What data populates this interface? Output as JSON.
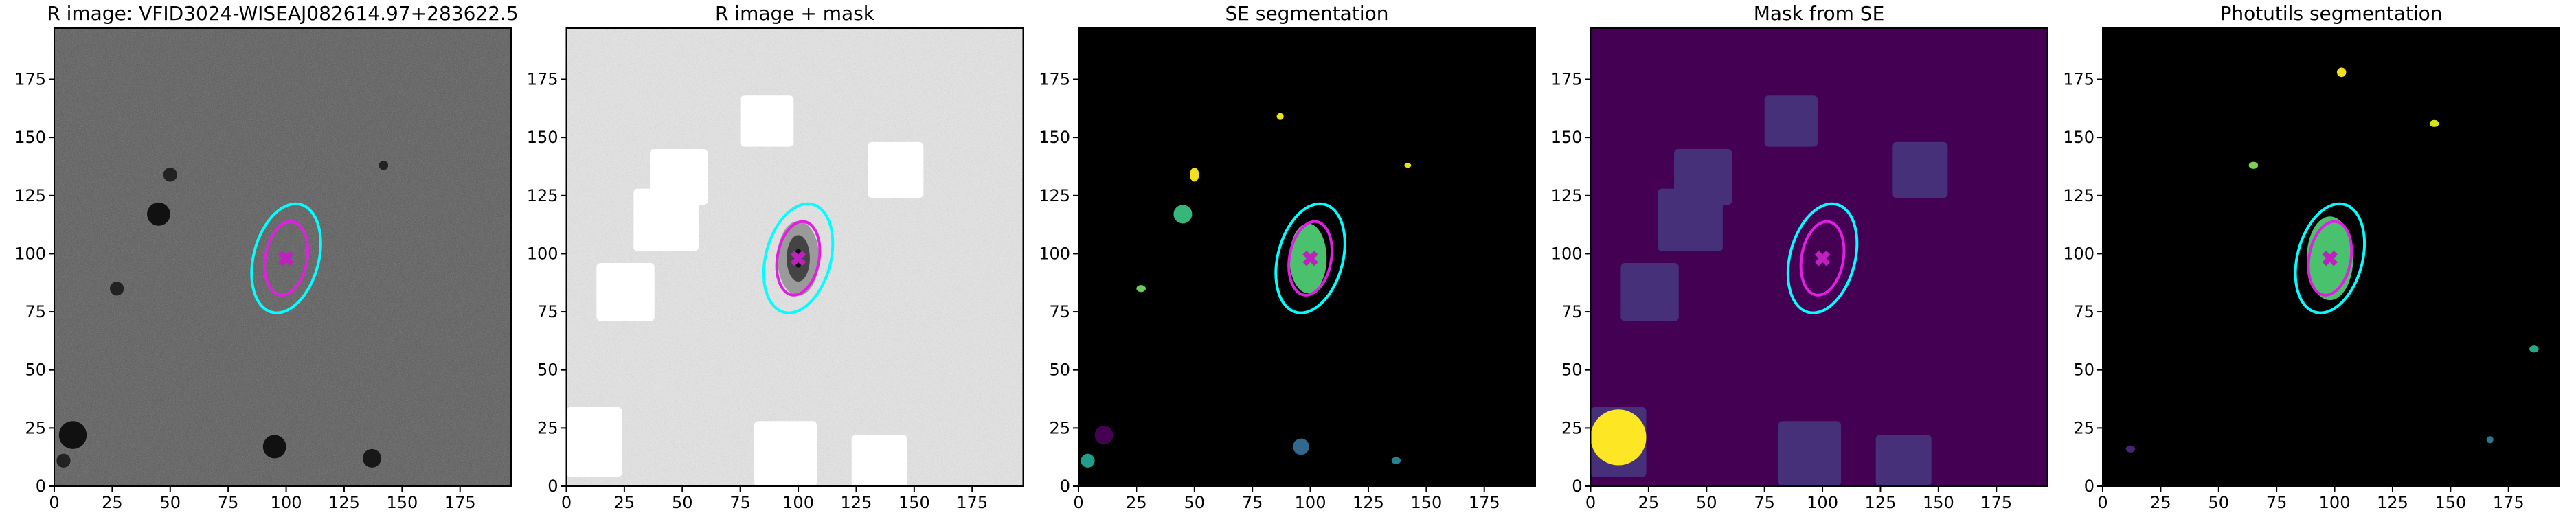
{
  "chart_data": [
    {
      "type": "image",
      "title": "R image: VFID3024-WISEAJ082614.97+283622.5",
      "xlim": [
        0,
        197
      ],
      "ylim": [
        0,
        197
      ],
      "xticks": [
        0,
        25,
        50,
        75,
        100,
        125,
        150,
        175
      ],
      "yticks": [
        0,
        25,
        50,
        75,
        100,
        125,
        150,
        175
      ],
      "background": "#5a5a5a",
      "noise": true,
      "regions": [],
      "region_color": "#ffffff",
      "sources": [
        {
          "x": 45,
          "y": 117,
          "rx": 5,
          "ry": 5,
          "color": "#111111"
        },
        {
          "x": 8,
          "y": 22,
          "rx": 6,
          "ry": 6,
          "color": "#111111"
        },
        {
          "x": 95,
          "y": 17,
          "rx": 5,
          "ry": 5,
          "color": "#111111"
        },
        {
          "x": 137,
          "y": 12,
          "rx": 4,
          "ry": 4,
          "color": "#181818"
        },
        {
          "x": 27,
          "y": 85,
          "rx": 3,
          "ry": 3,
          "color": "#222222"
        },
        {
          "x": 50,
          "y": 134,
          "rx": 3,
          "ry": 3,
          "color": "#222222"
        },
        {
          "x": 142,
          "y": 138,
          "rx": 2,
          "ry": 2,
          "color": "#222222"
        },
        {
          "x": 4,
          "y": 11,
          "rx": 3,
          "ry": 3,
          "color": "#222222"
        }
      ],
      "ellipses": [
        {
          "x": 100,
          "y": 98,
          "rx": 14,
          "ry": 24,
          "angle": 15,
          "color": "#00ffff"
        },
        {
          "x": 100,
          "y": 98,
          "rx": 9,
          "ry": 16,
          "angle": 10,
          "color": "#e020e0"
        }
      ],
      "center": [
        100,
        98
      ],
      "center_color": "#c020c0"
    },
    {
      "type": "image",
      "title": "R image + mask",
      "xlim": [
        0,
        197
      ],
      "ylim": [
        0,
        197
      ],
      "xticks": [
        0,
        25,
        50,
        75,
        100,
        125,
        150,
        175
      ],
      "yticks": [
        0,
        25,
        50,
        75,
        100,
        125,
        150,
        175
      ],
      "background": "#e6e6e6",
      "noise": true,
      "regions": [
        {
          "x0": 75,
          "x1": 98,
          "y0": 146,
          "y1": 168
        },
        {
          "x0": 36,
          "x1": 61,
          "y0": 121,
          "y1": 145
        },
        {
          "x0": 29,
          "x1": 57,
          "y0": 101,
          "y1": 128
        },
        {
          "x0": 130,
          "x1": 154,
          "y0": 124,
          "y1": 148
        },
        {
          "x0": 13,
          "x1": 38,
          "y0": 71,
          "y1": 96
        },
        {
          "x0": 0,
          "x1": 24,
          "y0": 4,
          "y1": 34
        },
        {
          "x0": 81,
          "x1": 108,
          "y0": 0,
          "y1": 28
        },
        {
          "x0": 123,
          "x1": 147,
          "y0": 0,
          "y1": 22
        }
      ],
      "region_color": "#ffffff",
      "sources": [
        {
          "x": 100,
          "y": 98,
          "rx": 9,
          "ry": 16,
          "color": "#9a9a9a"
        },
        {
          "x": 100,
          "y": 98,
          "rx": 5,
          "ry": 10,
          "color": "#444444"
        },
        {
          "x": 100,
          "y": 98,
          "rx": 2,
          "ry": 4,
          "color": "#111111"
        }
      ],
      "ellipses": [
        {
          "x": 100,
          "y": 98,
          "rx": 14,
          "ry": 24,
          "angle": 15,
          "color": "#00ffff"
        },
        {
          "x": 100,
          "y": 98,
          "rx": 9,
          "ry": 16,
          "angle": 10,
          "color": "#e020e0"
        }
      ],
      "center": [
        100,
        98
      ],
      "center_color": "#c020c0"
    },
    {
      "type": "image",
      "title": "SE segmentation",
      "xlim": [
        0,
        197
      ],
      "ylim": [
        0,
        197
      ],
      "xticks": [
        0,
        25,
        50,
        75,
        100,
        125,
        150,
        175
      ],
      "yticks": [
        0,
        25,
        50,
        75,
        100,
        125,
        150,
        175
      ],
      "background": "#000000",
      "noise": false,
      "regions": [],
      "region_color": "#ffffff",
      "sources": [
        {
          "x": 87,
          "y": 159,
          "rx": 1.5,
          "ry": 1.5,
          "color": "#e8e419"
        },
        {
          "x": 50,
          "y": 134,
          "rx": 2,
          "ry": 3,
          "color": "#f0e020"
        },
        {
          "x": 142,
          "y": 138,
          "rx": 1.5,
          "ry": 1,
          "color": "#e8e419"
        },
        {
          "x": 45,
          "y": 117,
          "rx": 4,
          "ry": 4,
          "color": "#35b779"
        },
        {
          "x": 27,
          "y": 85,
          "rx": 2,
          "ry": 1.5,
          "color": "#6ccd5a"
        },
        {
          "x": 11,
          "y": 22,
          "rx": 4,
          "ry": 4,
          "color": "#440154"
        },
        {
          "x": 4,
          "y": 11,
          "rx": 3,
          "ry": 3,
          "color": "#1f9e89"
        },
        {
          "x": 96,
          "y": 17,
          "rx": 3.5,
          "ry": 3.5,
          "color": "#31688e"
        },
        {
          "x": 137,
          "y": 11,
          "rx": 2,
          "ry": 1.5,
          "color": "#26828e"
        },
        {
          "x": 99,
          "y": 98,
          "rx": 8,
          "ry": 15,
          "color": "#4ac16d"
        }
      ],
      "ellipses": [
        {
          "x": 100,
          "y": 98,
          "rx": 14,
          "ry": 24,
          "angle": 15,
          "color": "#00ffff"
        },
        {
          "x": 100,
          "y": 98,
          "rx": 9,
          "ry": 16,
          "angle": 10,
          "color": "#e020e0"
        }
      ],
      "center": [
        100,
        98
      ],
      "center_color": "#c020c0"
    },
    {
      "type": "image",
      "title": "Mask from SE",
      "xlim": [
        0,
        197
      ],
      "ylim": [
        0,
        197
      ],
      "xticks": [
        0,
        25,
        50,
        75,
        100,
        125,
        150,
        175
      ],
      "yticks": [
        0,
        25,
        50,
        75,
        100,
        125,
        150,
        175
      ],
      "background": "#440154",
      "noise": false,
      "regions": [
        {
          "x0": 75,
          "x1": 98,
          "y0": 146,
          "y1": 168
        },
        {
          "x0": 36,
          "x1": 61,
          "y0": 121,
          "y1": 145
        },
        {
          "x0": 29,
          "x1": 57,
          "y0": 101,
          "y1": 128
        },
        {
          "x0": 130,
          "x1": 154,
          "y0": 124,
          "y1": 148
        },
        {
          "x0": 13,
          "x1": 38,
          "y0": 71,
          "y1": 96
        },
        {
          "x0": 0,
          "x1": 24,
          "y0": 4,
          "y1": 34
        },
        {
          "x0": 81,
          "x1": 108,
          "y0": 0,
          "y1": 28
        },
        {
          "x0": 123,
          "x1": 147,
          "y0": 0,
          "y1": 22
        }
      ],
      "region_color": "#46307a",
      "sources": [
        {
          "x": 12,
          "y": 21,
          "rx": 12,
          "ry": 12,
          "color": "#fde725"
        }
      ],
      "ellipses": [
        {
          "x": 100,
          "y": 98,
          "rx": 14,
          "ry": 24,
          "angle": 15,
          "color": "#00ffff"
        },
        {
          "x": 100,
          "y": 98,
          "rx": 9,
          "ry": 16,
          "angle": 10,
          "color": "#e020e0"
        }
      ],
      "center": [
        100,
        98
      ],
      "center_color": "#c020c0"
    },
    {
      "type": "image",
      "title": "Photutils segmentation",
      "xlim": [
        0,
        197
      ],
      "ylim": [
        0,
        197
      ],
      "xticks": [
        0,
        25,
        50,
        75,
        100,
        125,
        150,
        175
      ],
      "yticks": [
        0,
        25,
        50,
        75,
        100,
        125,
        150,
        175
      ],
      "background": "#000000",
      "noise": false,
      "regions": [],
      "region_color": "#ffffff",
      "sources": [
        {
          "x": 103,
          "y": 178,
          "rx": 2,
          "ry": 2,
          "color": "#f0e020"
        },
        {
          "x": 143,
          "y": 156,
          "rx": 2,
          "ry": 1.5,
          "color": "#d8e219"
        },
        {
          "x": 65,
          "y": 138,
          "rx": 2,
          "ry": 1.5,
          "color": "#7ad151"
        },
        {
          "x": 186,
          "y": 59,
          "rx": 2,
          "ry": 1.5,
          "color": "#22a884"
        },
        {
          "x": 167,
          "y": 20,
          "rx": 1.5,
          "ry": 1.5,
          "color": "#2a788e"
        },
        {
          "x": 12,
          "y": 16,
          "rx": 2,
          "ry": 1.5,
          "color": "#482475"
        },
        {
          "x": 98,
          "y": 98,
          "rx": 10,
          "ry": 18,
          "color": "#4ac16d"
        }
      ],
      "ellipses": [
        {
          "x": 98,
          "y": 98,
          "rx": 14,
          "ry": 24,
          "angle": 15,
          "color": "#00ffff"
        },
        {
          "x": 98,
          "y": 98,
          "rx": 9,
          "ry": 16,
          "angle": 10,
          "color": "#e020e0"
        }
      ],
      "center": [
        98,
        98
      ],
      "center_color": "#c020c0"
    }
  ]
}
